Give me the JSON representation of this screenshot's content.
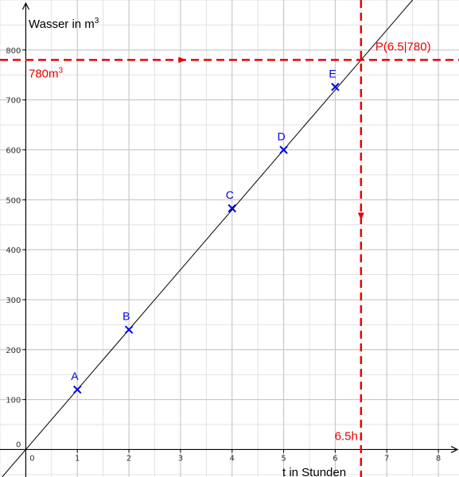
{
  "chart_data": {
    "type": "line",
    "xlabel": "t in Stunden",
    "ylabel": "Wasser  in  m",
    "ylabel_superscript": "3",
    "xlim": [
      -0.5,
      8.4
    ],
    "ylim": [
      -55,
      900
    ],
    "grid": true,
    "x_minor_step": 0.5,
    "y_minor_step": 50,
    "x_ticks": [
      0,
      1,
      2,
      3,
      4,
      5,
      6,
      7,
      8
    ],
    "x_tick_labels": [
      "0",
      "1",
      "2",
      "3",
      "4",
      "5",
      "6",
      "7",
      "8"
    ],
    "y_ticks": [
      0,
      100,
      200,
      300,
      400,
      500,
      600,
      700,
      800
    ],
    "y_tick_labels": [
      "0",
      "100",
      "200",
      "300",
      "400",
      "500",
      "600",
      "700",
      "800"
    ],
    "line": {
      "slope": 120,
      "intercept": 0,
      "color": "#000000"
    },
    "points": [
      {
        "label": "A",
        "x": 1,
        "y": 120
      },
      {
        "label": "B",
        "x": 2,
        "y": 240
      },
      {
        "label": "C",
        "x": 4,
        "y": 483
      },
      {
        "label": "D",
        "x": 5,
        "y": 600
      },
      {
        "label": "E",
        "x": 6,
        "y": 726
      }
    ],
    "point_color": "#0000dd",
    "highlight": {
      "x": 6.5,
      "y": 780,
      "point_label": "P(6.5|780)",
      "y_label": "780m",
      "y_label_superscript": "3",
      "x_label": "6.5h",
      "color": "#ee0000"
    }
  }
}
